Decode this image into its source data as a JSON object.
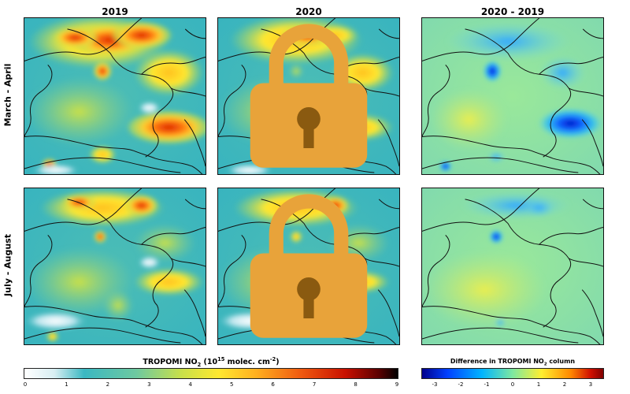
{
  "columns": {
    "c2019": "2019",
    "c2020": "2020",
    "diff": "2020 - 2019"
  },
  "rows": {
    "spring": "March - April",
    "summer": "July - August"
  },
  "colorbar_left": {
    "title_prefix": "TROPOMI NO",
    "title_sub": "2",
    "title_mid": " (10",
    "title_sup": "15",
    "title_after": " molec. cm",
    "title_sup2": "-2",
    "title_end": ")",
    "ticks": [
      "0",
      "1",
      "2",
      "3",
      "4",
      "5",
      "6",
      "7",
      "8",
      "9"
    ]
  },
  "colorbar_right": {
    "title_prefix": "Difference in TROPOMI NO",
    "title_sub": "2",
    "title_end": " column",
    "ticks": [
      "-3",
      "-2",
      "-1",
      "0",
      "1",
      "2",
      "3"
    ]
  },
  "colors": {
    "lock": "#e8a33a",
    "abs_scale": [
      "#ffffff",
      "#cde9ef",
      "#3bb8c2",
      "#6ec9a0",
      "#c8e04a",
      "#ffe830",
      "#ffb020",
      "#f05a10",
      "#c81000",
      "#5a0000",
      "#000000"
    ],
    "diff_scale": [
      "#00008c",
      "#0040ff",
      "#00b4ff",
      "#7ee8a0",
      "#ffee30",
      "#ff8800",
      "#d01000",
      "#800000"
    ]
  }
}
